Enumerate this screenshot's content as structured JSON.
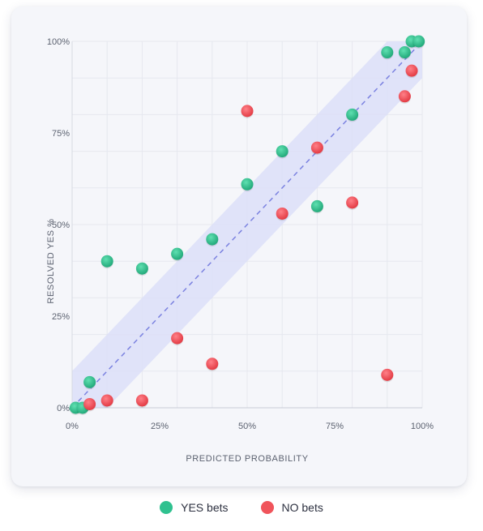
{
  "chart_data": {
    "type": "scatter",
    "xlabel": "PREDICTED PROBABILITY",
    "ylabel": "RESOLVED YES %",
    "xlim": [
      0,
      100
    ],
    "ylim": [
      0,
      100
    ],
    "x_ticks": [
      "0%",
      "25%",
      "50%",
      "75%",
      "100%"
    ],
    "y_ticks": [
      "0%",
      "25%",
      "50%",
      "75%",
      "100%"
    ],
    "grid": true,
    "legend_position": "bottom-center",
    "reference_line": "y = x",
    "band_halfwidth": 10,
    "series": [
      {
        "name": "YES bets",
        "color": "#2fc18f",
        "points": [
          [
            1,
            0
          ],
          [
            3,
            0
          ],
          [
            5,
            7
          ],
          [
            10,
            40
          ],
          [
            20,
            38
          ],
          [
            30,
            42
          ],
          [
            40,
            46
          ],
          [
            50,
            61
          ],
          [
            60,
            70
          ],
          [
            70,
            55
          ],
          [
            80,
            80
          ],
          [
            90,
            97
          ],
          [
            95,
            97
          ],
          [
            97,
            100
          ],
          [
            99,
            100
          ]
        ]
      },
      {
        "name": "NO bets",
        "color": "#f0545b",
        "points": [
          [
            5,
            1
          ],
          [
            10,
            2
          ],
          [
            20,
            2
          ],
          [
            30,
            19
          ],
          [
            40,
            12
          ],
          [
            50,
            81
          ],
          [
            60,
            53
          ],
          [
            70,
            71
          ],
          [
            80,
            56
          ],
          [
            90,
            9
          ],
          [
            95,
            85
          ],
          [
            97,
            92
          ]
        ]
      }
    ]
  }
}
